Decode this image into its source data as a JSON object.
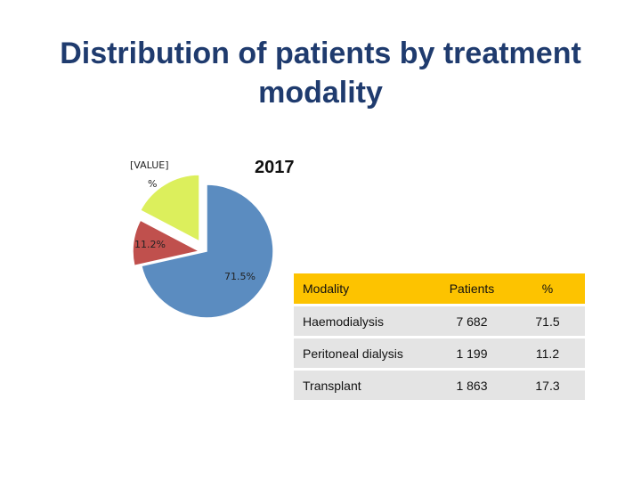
{
  "title": "Distribution of patients by treatment modality",
  "chart_data": {
    "type": "pie",
    "title": "2017",
    "slices": [
      {
        "name": "Haemodialysis",
        "value": 71.5,
        "label": "71.5%",
        "color": "#5b8cc0"
      },
      {
        "name": "Peritoneal dialysis",
        "value": 11.2,
        "label": "11.2%",
        "color": "#c0504d"
      },
      {
        "name": "Transplant",
        "value": 17.3,
        "label_top": "[VALUE]",
        "label_bottom": "%",
        "color": "#dcef5c"
      }
    ]
  },
  "table": {
    "headers": [
      "Modality",
      "Patients",
      "%"
    ],
    "rows": [
      [
        "Haemodialysis",
        "7 682",
        "71.5"
      ],
      [
        "Peritoneal dialysis",
        "1 199",
        "11.2"
      ],
      [
        "Transplant",
        "1 863",
        "17.3"
      ]
    ]
  }
}
